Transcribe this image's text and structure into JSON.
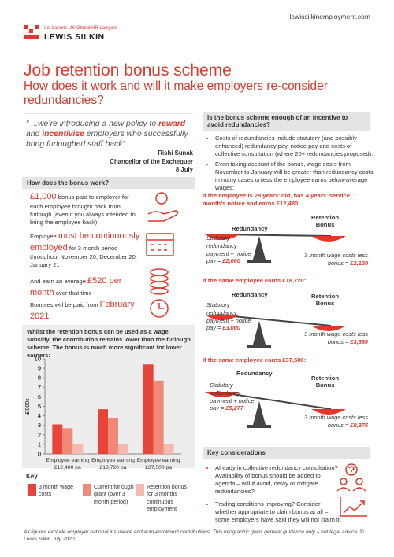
{
  "header": {
    "logo_tagline": "Ius Laboris UK Global HR Lawyers",
    "logo_name": "LEWIS SILKIN",
    "url": "lewissilkinemployment.com"
  },
  "title": "Job retention bonus scheme",
  "subtitle": "How does it work and will it make employers re-consider redundancies?",
  "quote": {
    "parts": [
      "“ ...we’re introducing a new policy to ",
      "reward",
      " and ",
      "incentivise",
      " employers who successfully bring furloughed staff back”"
    ],
    "speaker": "Rishi Sunak",
    "role": "Chancellor of the Exchequer",
    "date": "8 July"
  },
  "how": {
    "heading": "How does the bonus work?",
    "items": [
      {
        "highlight": "£1,000",
        "text": " bonus paid to employer for each employee brought back from furlough (even if you always intended to bring the employee back)"
      },
      {
        "lead": "Employee ",
        "highlight": "must be continuously employed",
        "text": " for 3 month period throughout November 20, December 20, January 21"
      },
      {
        "lead": "And earn an average ",
        "highlight": "£520 per month",
        "text": " over that time"
      },
      {
        "lead": "Bonuses will be paid from ",
        "highlight": "February 2021"
      }
    ]
  },
  "chart_data": {
    "type": "bar",
    "title": "Whilst the retention bonus can be used as a wage subsidy, the contribution remains lower than the furlough scheme. The bonus is much more significant for lower earners:",
    "y_label": "£'000s",
    "categories": [
      "Employee earning £12,480 pa",
      "Employee earning £18,720 pa",
      "Employee earning £37,500 pa"
    ],
    "series": [
      {
        "name": "3 month wage costs",
        "color": "#e8443a",
        "values": [
          3.1,
          4.7,
          9.4
        ]
      },
      {
        "name": "Current furlough grant (over 3 month period)",
        "color": "#f08a76",
        "values": [
          2.7,
          3.8,
          7.7
        ]
      },
      {
        "name": "Retention bonus for 3 months continuous employment",
        "color": "#f6b9ad",
        "values": [
          1,
          1,
          1
        ]
      }
    ],
    "ylim": [
      0,
      10
    ],
    "yticks": [
      0,
      1,
      2,
      3,
      4,
      5,
      6,
      7,
      8,
      9,
      10
    ],
    "grid": false,
    "legend_title": "Key"
  },
  "enough": {
    "heading": "Is the bonus scheme enough of an incentive to avoid redundancies?",
    "bullets": [
      "Costs of redundancies include statutory (and possibly enhanced) redundancy pay, notice pay and costs of collective consultation (where 20+ redundancies proposed).",
      "Even taking account of the bonus, wage costs from November to January will be greater than redundancy costs in many cases unless the employee earns below-average wages:"
    ]
  },
  "scale_labels": {
    "left": "Redundancy",
    "right": "Retention Bonus"
  },
  "scenarios": [
    {
      "heading": "If the employee is 28 years’ old, has 4 years’ service, 1 month’s notice and earns £12,480:",
      "left_text": "Statutory redundancy payment + notice pay = ",
      "left_value": "£2,000",
      "right_text": "3 month wage costs less bonus = ",
      "right_value": "£2,120"
    },
    {
      "heading": "If the same employee earns £18,720:",
      "left_text": "Statutory redundancy payment + notice pay = ",
      "left_value": "£3,000",
      "right_text": "3 month wage costs less bonus = ",
      "right_value": "£3,680"
    },
    {
      "heading": "If the same employee earns £37,500:",
      "left_text": "Statutory redundancy payment + notice pay = ",
      "left_value": "£5,277",
      "right_text": "3 month wage costs less bonus = ",
      "right_value": "£8,375"
    }
  ],
  "considerations": {
    "heading": "Key considerations",
    "bullets": [
      "Already in collective redundancy consultation? Availability of bonus should be added to agenda – will it avoid, delay or mitigate redundancies?",
      "Trading conditions improving? Consider whether appropriate to claim bonus at all – some employers have said they will not claim it."
    ]
  },
  "footer": "All figures exclude employer national insurance and auto-enrolment contributions. This infographic gives general guidance only – not legal advice. © Lewis Silkin July 2020."
}
